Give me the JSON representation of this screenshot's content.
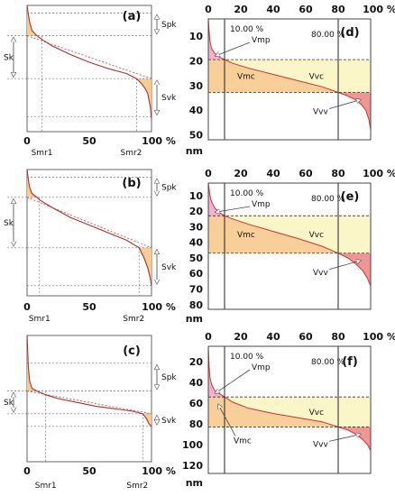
{
  "chart_data": [
    {
      "id": "a",
      "type": "area",
      "panel_label": "(a)",
      "x_ticks": [
        "0",
        "50",
        "100 %"
      ],
      "markers": [
        "Smr1",
        "Smr2"
      ],
      "annotations": [
        "Spk",
        "Sk",
        "Svk"
      ],
      "xlim": [
        0,
        100
      ],
      "smr1": 12,
      "smr2": 88,
      "ylim": [
        0,
        1
      ],
      "levels": {
        "peak_top": 0.06,
        "core_top": 0.24,
        "core_bottom": 0.58,
        "valley_bottom": 0.88
      },
      "curve": {
        "x": [
          0,
          1,
          2,
          4,
          8,
          12,
          20,
          35,
          50,
          65,
          80,
          88,
          92,
          95,
          97,
          99,
          100
        ],
        "y": [
          0.0,
          0.07,
          0.13,
          0.2,
          0.24,
          0.27,
          0.32,
          0.39,
          0.45,
          0.5,
          0.54,
          0.58,
          0.62,
          0.66,
          0.7,
          0.8,
          0.9
        ]
      }
    },
    {
      "id": "b",
      "type": "area",
      "panel_label": "(b)",
      "x_ticks": [
        "0",
        "50",
        "100 %"
      ],
      "markers": [
        "Smr1",
        "Smr2"
      ],
      "annotations": [
        "Spk",
        "Sk",
        "Svk"
      ],
      "xlim": [
        0,
        100
      ],
      "smr1": 10,
      "smr2": 90,
      "ylim": [
        0,
        1
      ],
      "levels": {
        "peak_top": 0.06,
        "core_top": 0.22,
        "core_bottom": 0.62,
        "valley_bottom": 0.92
      },
      "curve": {
        "x": [
          0,
          1,
          2,
          4,
          8,
          10,
          20,
          35,
          50,
          65,
          80,
          90,
          94,
          97,
          99,
          100
        ],
        "y": [
          0.0,
          0.08,
          0.14,
          0.19,
          0.22,
          0.24,
          0.3,
          0.38,
          0.44,
          0.5,
          0.56,
          0.62,
          0.7,
          0.78,
          0.86,
          0.92
        ]
      }
    },
    {
      "id": "c",
      "type": "area",
      "panel_label": "(c)",
      "x_ticks": [
        "0",
        "50",
        "100 %"
      ],
      "markers": [
        "Smr1",
        "Smr2"
      ],
      "annotations": [
        "Spk",
        "Sk",
        "Svk"
      ],
      "xlim": [
        0,
        100
      ],
      "smr1": 15,
      "smr2": 93,
      "ylim": [
        0,
        1
      ],
      "levels": {
        "peak_top": 0.22,
        "core_top": 0.44,
        "core_bottom": 0.62,
        "valley_bottom": 0.72
      },
      "curve": {
        "x": [
          0,
          1,
          2,
          4,
          8,
          15,
          25,
          40,
          55,
          70,
          85,
          93,
          96,
          98,
          100
        ],
        "y": [
          0.0,
          0.25,
          0.36,
          0.42,
          0.44,
          0.47,
          0.5,
          0.53,
          0.56,
          0.58,
          0.6,
          0.62,
          0.66,
          0.7,
          0.72
        ]
      }
    },
    {
      "id": "d",
      "type": "area",
      "panel_label": "(d)",
      "x_ticks": [
        "0",
        "20",
        "40",
        "60",
        "80",
        "100 %"
      ],
      "y_ticks": [
        "10",
        "20",
        "30",
        "40",
        "50"
      ],
      "y_unit": "nm",
      "pct_labels": [
        "10.00 %",
        "80.00 %"
      ],
      "vol_labels": [
        "Vmp",
        "Vmc",
        "Vvc",
        "Vvv"
      ],
      "xlim": [
        0,
        100
      ],
      "ylim": [
        3,
        52
      ],
      "mr1": 10,
      "mr2": 80,
      "h_mr1": 19.5,
      "h_mr2": 32.8,
      "curve": {
        "x": [
          0,
          0.5,
          1,
          2,
          4,
          7,
          10,
          15,
          25,
          40,
          55,
          70,
          80,
          85,
          90,
          94,
          97,
          99,
          100
        ],
        "y": [
          3,
          8,
          12,
          15,
          17,
          18.5,
          19.5,
          21,
          23,
          25.5,
          28,
          30.5,
          32.8,
          34,
          35.5,
          37.5,
          40,
          44,
          48
        ]
      }
    },
    {
      "id": "e",
      "type": "area",
      "panel_label": "(e)",
      "x_ticks": [
        "0",
        "20",
        "40",
        "60",
        "80",
        "100 %"
      ],
      "y_ticks": [
        "10",
        "20",
        "30",
        "40",
        "50",
        "60",
        "70",
        "80"
      ],
      "y_unit": "nm",
      "pct_labels": [
        "10.00 %",
        "80.00 %"
      ],
      "vol_labels": [
        "Vmp",
        "Vmc",
        "Vvc",
        "Vvv"
      ],
      "xlim": [
        0,
        100
      ],
      "ylim": [
        2,
        83
      ],
      "mr1": 10,
      "mr2": 80,
      "h_mr1": 23,
      "h_mr2": 47,
      "curve": {
        "x": [
          0,
          0.5,
          1,
          2,
          4,
          7,
          10,
          15,
          25,
          40,
          55,
          70,
          80,
          86,
          91,
          95,
          98,
          100
        ],
        "y": [
          2,
          6,
          10,
          14,
          18,
          21,
          23,
          25,
          28.5,
          33,
          37.5,
          42.5,
          47,
          50,
          54,
          58,
          63,
          68
        ]
      }
    },
    {
      "id": "f",
      "type": "area",
      "panel_label": "(f)",
      "x_ticks": [
        "0",
        "20",
        "40",
        "60",
        "80",
        "100 %"
      ],
      "y_ticks": [
        "20",
        "40",
        "60",
        "80",
        "100",
        "120"
      ],
      "y_unit": "nm",
      "pct_labels": [
        "10.00 %",
        "80.00 %"
      ],
      "vol_labels": [
        "Vmp",
        "Vmc",
        "Vvc",
        "Vvv"
      ],
      "xlim": [
        0,
        100
      ],
      "ylim": [
        5,
        128
      ],
      "mr1": 10,
      "mr2": 80,
      "h_mr1": 54,
      "h_mr2": 83,
      "curve": {
        "x": [
          0,
          0.5,
          1,
          2,
          4,
          7,
          10,
          15,
          25,
          40,
          55,
          70,
          80,
          86,
          91,
          95,
          98,
          100
        ],
        "y": [
          5,
          25,
          35,
          42,
          48,
          51,
          54,
          59,
          65,
          70,
          74,
          78,
          83,
          86,
          90,
          95,
          100,
          106
        ]
      }
    }
  ]
}
